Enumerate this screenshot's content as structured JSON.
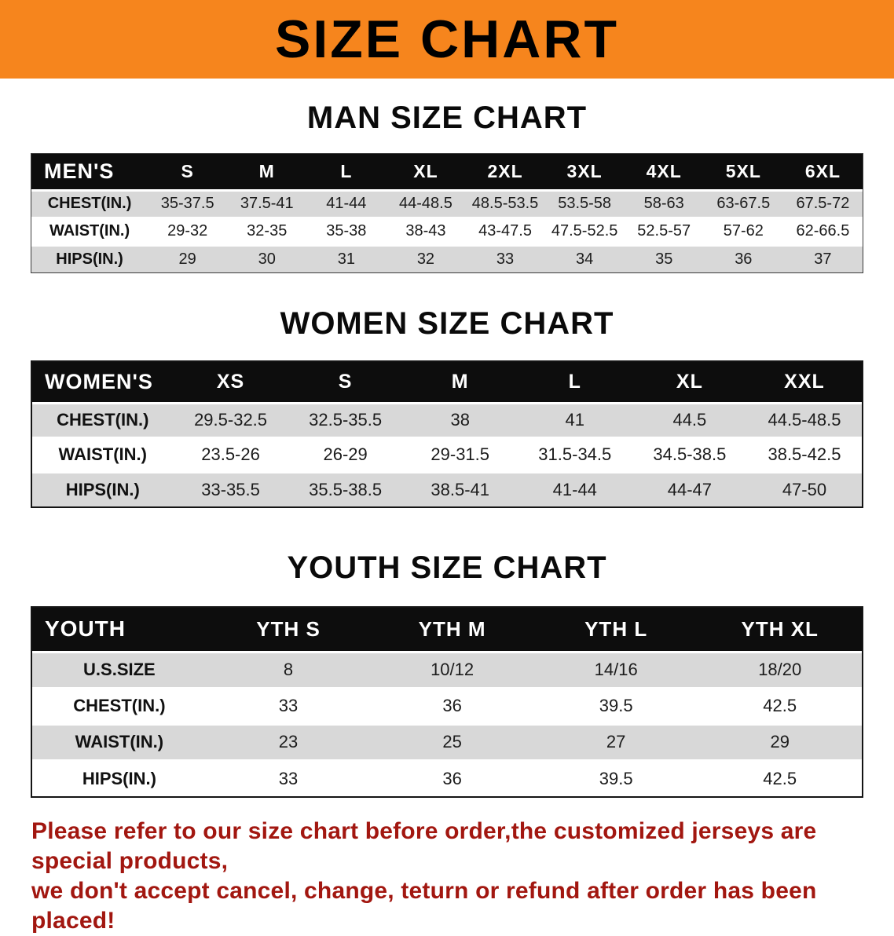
{
  "colors": {
    "banner_bg": "#f6851d",
    "banner_text": "#000000",
    "header_bg": "#0d0d0d",
    "stripe": "#d8d8d8",
    "note_text": "#a21710"
  },
  "banner": {
    "title": "SIZE CHART"
  },
  "sections": [
    {
      "heading": "MAN SIZE CHART",
      "table": {
        "header": [
          "MEN'S",
          "S",
          "M",
          "L",
          "XL",
          "2XL",
          "3XL",
          "4XL",
          "5XL",
          "6XL"
        ],
        "rows": [
          [
            "CHEST(IN.)",
            "35-37.5",
            "37.5-41",
            "41-44",
            "44-48.5",
            "48.5-53.5",
            "53.5-58",
            "58-63",
            "63-67.5",
            "67.5-72"
          ],
          [
            "WAIST(IN.)",
            "29-32",
            "32-35",
            "35-38",
            "38-43",
            "43-47.5",
            "47.5-52.5",
            "52.5-57",
            "57-62",
            "62-66.5"
          ],
          [
            "HIPS(IN.)",
            "29",
            "30",
            "31",
            "32",
            "33",
            "34",
            "35",
            "36",
            "37"
          ]
        ]
      }
    },
    {
      "heading": "WOMEN SIZE CHART",
      "table": {
        "header": [
          "WOMEN'S",
          "XS",
          "S",
          "M",
          "L",
          "XL",
          "XXL"
        ],
        "rows": [
          [
            "CHEST(IN.)",
            "29.5-32.5",
            "32.5-35.5",
            "38",
            "41",
            "44.5",
            "44.5-48.5"
          ],
          [
            "WAIST(IN.)",
            "23.5-26",
            "26-29",
            "29-31.5",
            "31.5-34.5",
            "34.5-38.5",
            "38.5-42.5"
          ],
          [
            "HIPS(IN.)",
            "33-35.5",
            "35.5-38.5",
            "38.5-41",
            "41-44",
            "44-47",
            "47-50"
          ]
        ]
      }
    },
    {
      "heading": "YOUTH SIZE CHART",
      "table": {
        "header": [
          "YOUTH",
          "YTH S",
          "YTH M",
          "YTH L",
          "YTH XL"
        ],
        "rows": [
          [
            "U.S.SIZE",
            "8",
            "10/12",
            "14/16",
            "18/20"
          ],
          [
            "CHEST(IN.)",
            "33",
            "36",
            "39.5",
            "42.5"
          ],
          [
            "WAIST(IN.)",
            "23",
            "25",
            "27",
            "29"
          ],
          [
            "HIPS(IN.)",
            "33",
            "36",
            "39.5",
            "42.5"
          ]
        ]
      }
    }
  ],
  "note": {
    "line1": "Please refer to our size chart before order,the customized jerseys are special products,",
    "line2": "we don't accept cancel, change, teturn or refund after order has been placed!"
  }
}
